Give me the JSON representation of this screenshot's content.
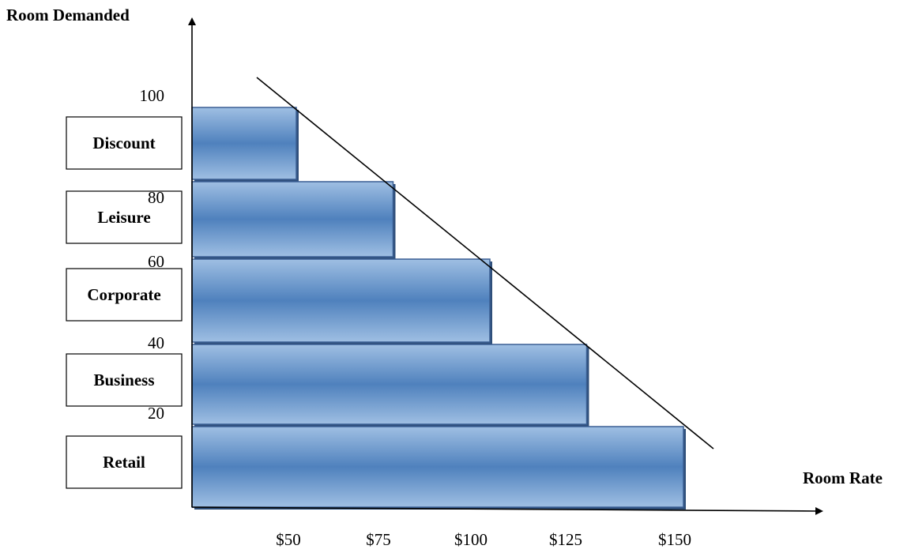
{
  "chart_data": {
    "type": "bar",
    "orientation": "horizontal",
    "ylabel": "Room Demanded",
    "xlabel": "Room Rate",
    "x_ticks": [
      "$50",
      "$75",
      "$100",
      "$125",
      "$150"
    ],
    "y_ticks": [
      "100",
      "80",
      "60",
      "40",
      "20"
    ],
    "segments": [
      {
        "label": "Discount",
        "demand_top": 100,
        "rate": 50
      },
      {
        "label": "Leisure",
        "demand_top": 80,
        "rate": 75
      },
      {
        "label": "Corporate",
        "demand_top": 60,
        "rate": 100
      },
      {
        "label": "Business",
        "demand_top": 40,
        "rate": 125
      },
      {
        "label": "Retail",
        "demand_top": 20,
        "rate": 150
      }
    ],
    "grid": false,
    "legend": "none",
    "colors": {
      "bar": "#4f81bd",
      "bar_light": "#9fbfe3",
      "bar_border": "#3a5f93",
      "bar_shadow": "#2f4f7a"
    }
  }
}
